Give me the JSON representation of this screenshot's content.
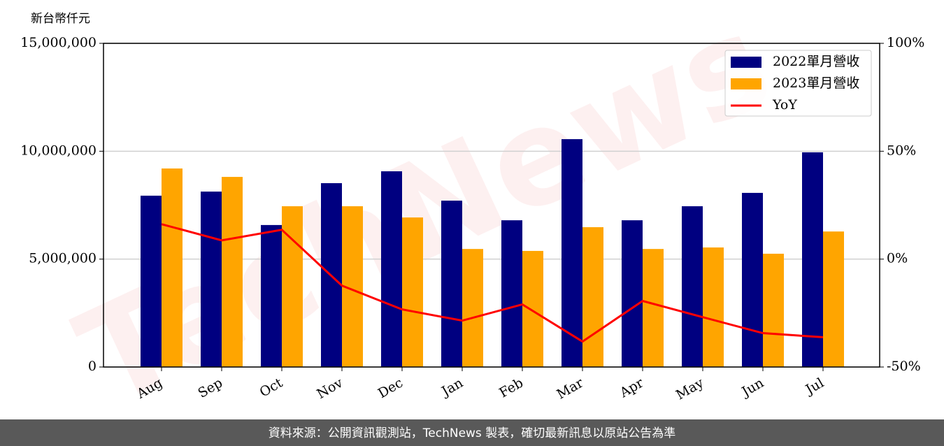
{
  "chart_data": {
    "type": "bar",
    "y_label": "新台幣仟元",
    "watermark": "TechNews",
    "footer": "資料來源：公開資訊觀測站，TechNews 製表，確切最新訊息以原站公告為準",
    "categories": [
      "Aug",
      "Sep",
      "Oct",
      "Nov",
      "Dec",
      "Jan",
      "Feb",
      "Mar",
      "Apr",
      "May",
      "Jun",
      "Jul"
    ],
    "series": [
      {
        "name": "2022單月營收",
        "type": "bar",
        "color": "#000080",
        "values": [
          7940000,
          8130000,
          6580000,
          8520000,
          9070000,
          7710000,
          6800000,
          10560000,
          6800000,
          7450000,
          8070000,
          9950000
        ]
      },
      {
        "name": "2023單月營收",
        "type": "bar",
        "color": "#ffa500",
        "values": [
          9200000,
          8810000,
          7450000,
          7450000,
          6930000,
          5470000,
          5380000,
          6480000,
          5470000,
          5540000,
          5250000,
          6280000
        ]
      },
      {
        "name": "YoY",
        "type": "line",
        "axis": "y2",
        "color": "#ff0000",
        "values": [
          16.2,
          8.7,
          13.6,
          -12.3,
          -23.3,
          -28.5,
          -21,
          -38.2,
          -19.4,
          -26.9,
          -34.3,
          -36.2
        ]
      }
    ],
    "ylim": [
      0,
      15000000
    ],
    "yticks": [
      0,
      {
        "value": 5000000,
        "label": "5,000,000"
      },
      {
        "value": 10000000,
        "label": "10,000,000"
      },
      {
        "value": 15000000,
        "label": "15,000,000"
      }
    ],
    "y2lim": [
      -50,
      100
    ],
    "y2ticks": [
      {
        "value": -50,
        "label": "-50%"
      },
      {
        "value": 0,
        "label": "0%"
      },
      {
        "value": 50,
        "label": "50%"
      },
      {
        "value": 100,
        "label": "100%"
      }
    ],
    "grid": true,
    "legend": "upper right"
  }
}
